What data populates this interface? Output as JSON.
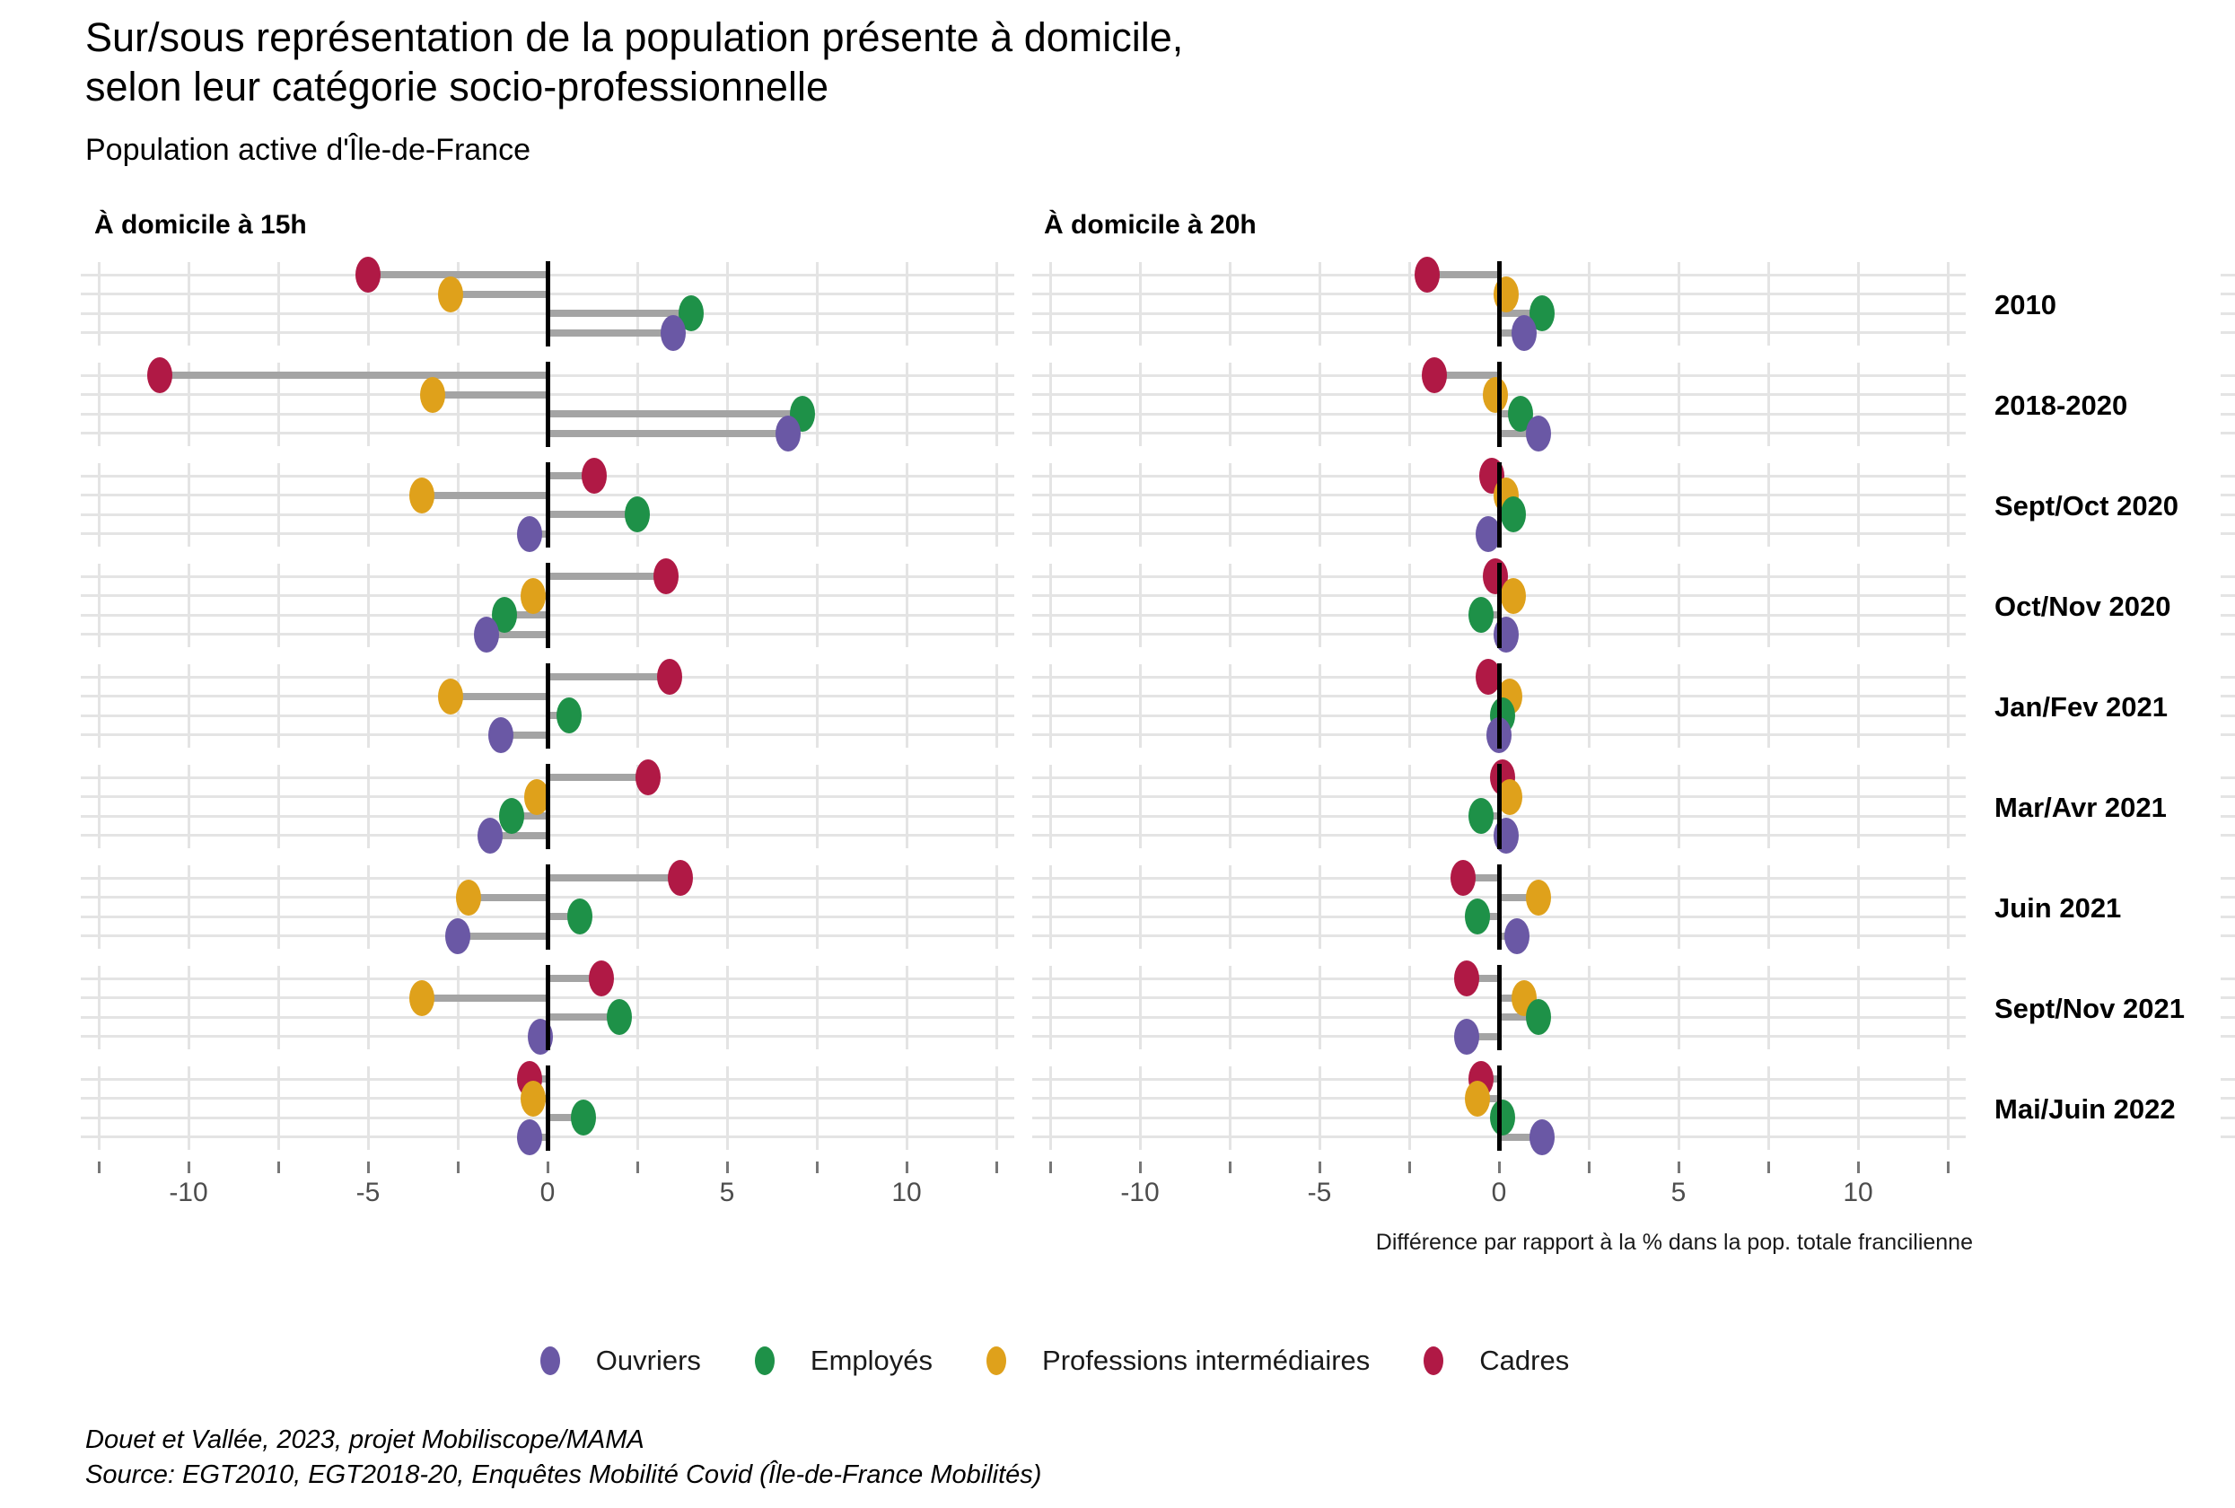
{
  "header": {
    "title_line1": "Sur/sous représentation de la population présente à domicile,",
    "title_line2": "selon leur catégorie socio-professionnelle",
    "subtitle": "Population active d'Île-de-France"
  },
  "axis": {
    "tick_values": [
      -10,
      -5,
      0,
      5,
      10
    ],
    "tick_labels": [
      "-10",
      "-5",
      "0",
      "5",
      "10"
    ],
    "minor_tick_step": 2.5,
    "caption": "Différence par rapport à la % dans la pop. totale francilienne"
  },
  "legend": {
    "items": [
      {
        "label": "Ouvriers",
        "color": "#6a58a5"
      },
      {
        "label": "Employés",
        "color": "#1e9148"
      },
      {
        "label": "Professions intermédiaires",
        "color": "#dfa11b"
      },
      {
        "label": "Cadres",
        "color": "#b01945"
      }
    ]
  },
  "footer": {
    "line1": "Douet et Vallée, 2023, projet Mobiliscope/MAMA",
    "line2": "Source: EGT2010, EGT2018-20, Enquêtes Mobilité Covid (Île-de-France Mobilités)"
  },
  "colors": {
    "ouvriers": "#6a58a5",
    "employes": "#1e9148",
    "professions_intermediaires": "#dfa11b",
    "cadres": "#b01945",
    "stem": "#a4a4a4",
    "gridline": "#e4e4e4",
    "zero_line": "#000000"
  },
  "chart_data": {
    "type": "lollipop",
    "categories": [
      "2010",
      "2018-2020",
      "Sept/Oct 2020",
      "Oct/Nov 2020",
      "Jan/Fev 2021",
      "Mar/Avr 2021",
      "Juin 2021",
      "Sept/Nov 2021",
      "Mai/Juin 2022"
    ],
    "series_order_top_to_bottom": [
      "Cadres",
      "Professions intermédiaires",
      "Employés",
      "Ouvriers"
    ],
    "xlim": [
      -13,
      13
    ],
    "grid": true,
    "legend_position": "bottom",
    "xlabel": "Différence par rapport à la % dans la pop. totale francilienne",
    "panels": [
      {
        "title": "À domicile à 15h",
        "series": [
          {
            "name": "Cadres",
            "color": "#b01945",
            "values": [
              -5.0,
              -10.8,
              1.3,
              3.3,
              3.4,
              2.8,
              3.7,
              1.5,
              -0.5
            ]
          },
          {
            "name": "Professions intermédiaires",
            "color": "#dfa11b",
            "values": [
              -2.7,
              -3.2,
              -3.5,
              -0.4,
              -2.7,
              -0.3,
              -2.2,
              -3.5,
              -0.4
            ]
          },
          {
            "name": "Employés",
            "color": "#1e9148",
            "values": [
              4.0,
              7.1,
              2.5,
              -1.2,
              0.6,
              -1.0,
              0.9,
              2.0,
              1.0
            ]
          },
          {
            "name": "Ouvriers",
            "color": "#6a58a5",
            "values": [
              3.5,
              6.7,
              -0.5,
              -1.7,
              -1.3,
              -1.6,
              -2.5,
              -0.2,
              -0.5
            ]
          }
        ]
      },
      {
        "title": "À domicile à 20h",
        "series": [
          {
            "name": "Cadres",
            "color": "#b01945",
            "values": [
              -2.0,
              -1.8,
              -0.2,
              -0.1,
              -0.3,
              0.1,
              -1.0,
              -0.9,
              -0.5
            ]
          },
          {
            "name": "Professions intermédiaires",
            "color": "#dfa11b",
            "values": [
              0.2,
              -0.1,
              0.2,
              0.4,
              0.3,
              0.3,
              1.1,
              0.7,
              -0.6
            ]
          },
          {
            "name": "Employés",
            "color": "#1e9148",
            "values": [
              1.2,
              0.6,
              0.4,
              -0.5,
              0.1,
              -0.5,
              -0.6,
              1.1,
              0.1
            ]
          },
          {
            "name": "Ouvriers",
            "color": "#6a58a5",
            "values": [
              0.7,
              1.1,
              -0.3,
              0.2,
              0.0,
              0.2,
              0.5,
              -0.9,
              1.2
            ]
          }
        ]
      }
    ]
  }
}
